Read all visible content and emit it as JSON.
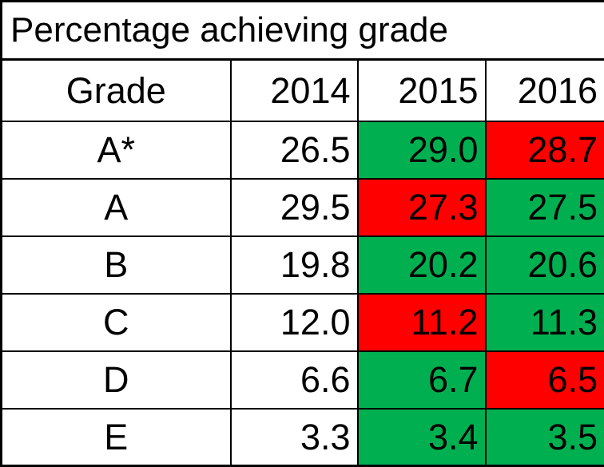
{
  "title": "Percentage achieving grade",
  "colors": {
    "increase": "#00b050",
    "decrease": "#ff0000",
    "neutral": "#ffffff",
    "border": "#000000"
  },
  "header": {
    "grade_label": "Grade",
    "years": [
      "2014",
      "2015",
      "2016"
    ]
  },
  "rows": [
    {
      "grade": "A*",
      "values": [
        "26.5",
        "29.0",
        "28.7"
      ],
      "status": [
        "neutral",
        "up",
        "down"
      ]
    },
    {
      "grade": "A",
      "values": [
        "29.5",
        "27.3",
        "27.5"
      ],
      "status": [
        "neutral",
        "down",
        "up"
      ]
    },
    {
      "grade": "B",
      "values": [
        "19.8",
        "20.2",
        "20.6"
      ],
      "status": [
        "neutral",
        "up",
        "up"
      ]
    },
    {
      "grade": "C",
      "values": [
        "12.0",
        "11.2",
        "11.3"
      ],
      "status": [
        "neutral",
        "down",
        "up"
      ]
    },
    {
      "grade": "D",
      "values": [
        "6.6",
        "6.7",
        "6.5"
      ],
      "status": [
        "neutral",
        "up",
        "down"
      ]
    },
    {
      "grade": "E",
      "values": [
        "3.3",
        "3.4",
        "3.5"
      ],
      "status": [
        "neutral",
        "up",
        "up"
      ]
    }
  ]
}
